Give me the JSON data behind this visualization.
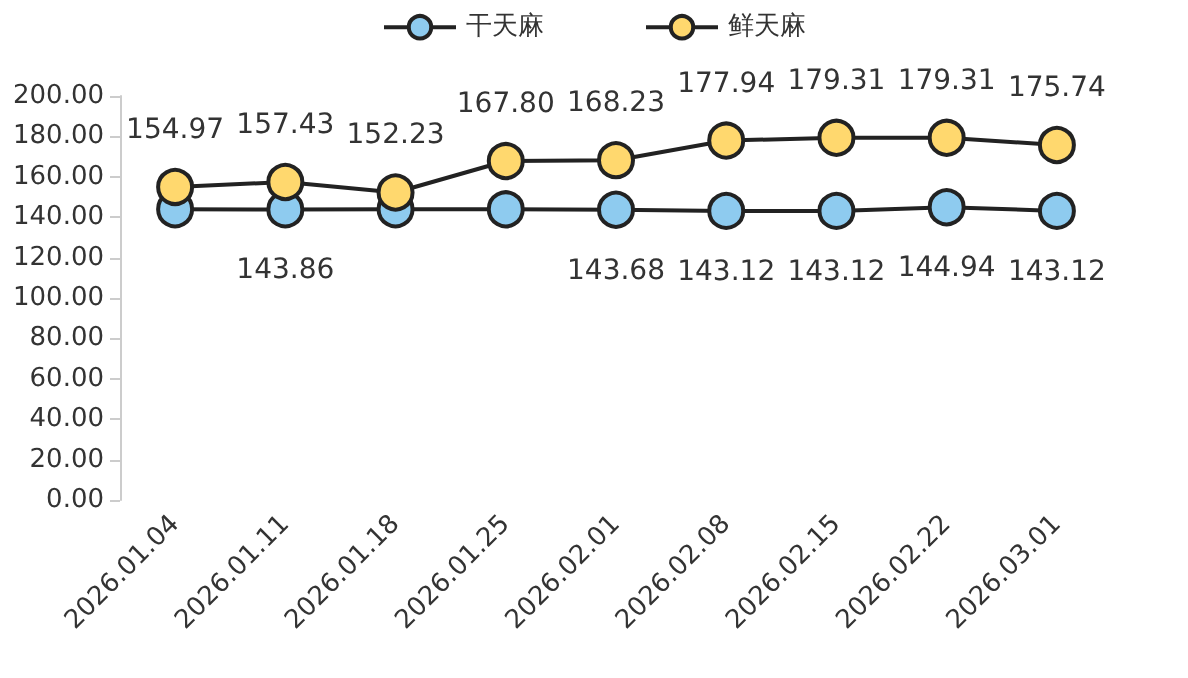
{
  "chart_data": {
    "type": "line",
    "categories": [
      "2026.01.04",
      "2026.01.11",
      "2026.01.18",
      "2026.01.25",
      "2026.02.01",
      "2026.02.08",
      "2026.02.15",
      "2026.02.22",
      "2026.03.01"
    ],
    "series": [
      {
        "name": "干天麻",
        "color": "#8ecbef",
        "values": [
          143.9,
          143.86,
          143.9,
          143.9,
          143.68,
          143.12,
          143.12,
          144.94,
          143.12
        ],
        "value_labels": [
          null,
          "143.86",
          null,
          null,
          "143.68",
          "143.12",
          "143.12",
          "144.94",
          "143.12"
        ]
      },
      {
        "name": "鲜天麻",
        "color": "#ffd86e",
        "values": [
          154.97,
          157.43,
          152.23,
          167.8,
          168.23,
          177.94,
          179.31,
          179.31,
          175.74
        ],
        "value_labels": [
          "154.97",
          "157.43",
          "152.23",
          "167.80",
          "168.23",
          "177.94",
          "179.31",
          "179.31",
          "175.74"
        ]
      }
    ],
    "ylim": [
      0,
      200
    ],
    "yticks": [
      {
        "value": 0,
        "label": "0.00"
      },
      {
        "value": 20,
        "label": "20.00"
      },
      {
        "value": 40,
        "label": "40.00"
      },
      {
        "value": 60,
        "label": "60.00"
      },
      {
        "value": 80,
        "label": "80.00"
      },
      {
        "value": 100,
        "label": "100.00"
      },
      {
        "value": 120,
        "label": "120.00"
      },
      {
        "value": 140,
        "label": "140.00"
      },
      {
        "value": 160,
        "label": "160.00"
      },
      {
        "value": 180,
        "label": "180.00"
      },
      {
        "value": 200,
        "label": "200.00"
      }
    ],
    "grid": false,
    "legend": "top",
    "marker": "circle",
    "line_style": "solid"
  }
}
